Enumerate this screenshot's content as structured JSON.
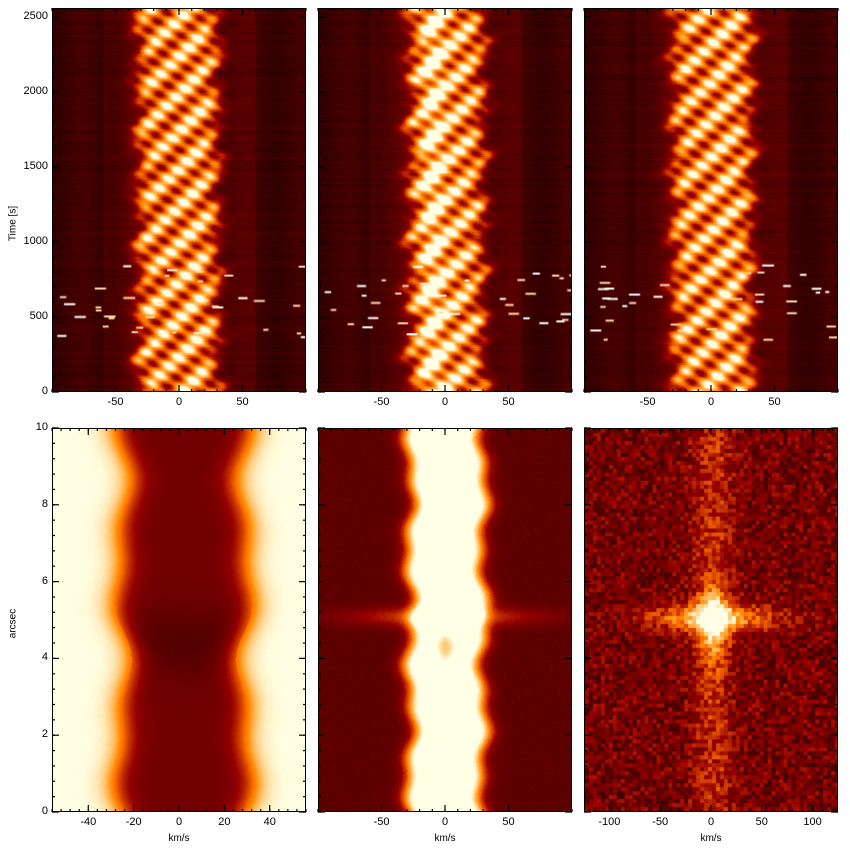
{
  "chart_data": [
    {
      "type": "heatmap",
      "panel": "top-left",
      "x_ticks": [
        "-50",
        "0",
        "50"
      ],
      "x_tick_values": [
        -50,
        0,
        50
      ],
      "xlim": [
        -100,
        100
      ],
      "ylabel": "Time [s]",
      "y_ticks": [
        "0",
        "500",
        "1000",
        "1500",
        "2000",
        "2500"
      ],
      "y_tick_values": [
        0,
        500,
        1000,
        1500,
        2000,
        2500
      ],
      "ylim": [
        0,
        2560
      ],
      "bright_band_kms": [
        -32,
        30
      ],
      "colormap": "red-temperature"
    },
    {
      "type": "heatmap",
      "panel": "top-middle",
      "x_ticks": [
        "-50",
        "0",
        "50"
      ],
      "x_tick_values": [
        -50,
        0,
        50
      ],
      "xlim": [
        -100,
        100
      ],
      "ylim": [
        0,
        2560
      ],
      "bright_band_kms": [
        -28,
        30
      ],
      "colormap": "red-temperature"
    },
    {
      "type": "heatmap",
      "panel": "top-right",
      "x_ticks": [
        "-50",
        "0",
        "50"
      ],
      "x_tick_values": [
        -50,
        0,
        50
      ],
      "xlim": [
        -100,
        100
      ],
      "ylim": [
        0,
        2560
      ],
      "bright_band_kms": [
        -30,
        32
      ],
      "colormap": "red-temperature"
    },
    {
      "type": "heatmap",
      "panel": "bottom-left",
      "xlabel": "km/s",
      "x_ticks": [
        "-40",
        "-20",
        "0",
        "20",
        "40"
      ],
      "x_tick_values": [
        -40,
        -20,
        0,
        20,
        40
      ],
      "xlim": [
        -56,
        56
      ],
      "ylabel": "arcsec",
      "y_ticks": [
        "0",
        "2",
        "4",
        "6",
        "8",
        "10"
      ],
      "y_tick_values": [
        0,
        2,
        4,
        6,
        8,
        10
      ],
      "ylim": [
        0,
        10
      ],
      "colormap": "red-temperature"
    },
    {
      "type": "heatmap",
      "panel": "bottom-middle",
      "xlabel": "km/s",
      "x_ticks": [
        "-50",
        "0",
        "50"
      ],
      "x_tick_values": [
        -50,
        0,
        50
      ],
      "xlim": [
        -100,
        100
      ],
      "ylim": [
        0,
        10
      ],
      "bright_band_kms": [
        -28,
        30
      ],
      "colormap": "red-temperature"
    },
    {
      "type": "heatmap",
      "panel": "bottom-right",
      "xlabel": "km/s",
      "x_ticks": [
        "-100",
        "-50",
        "0",
        "50",
        "100"
      ],
      "x_tick_values": [
        -100,
        -50,
        0,
        50,
        100
      ],
      "xlim": [
        -125,
        125
      ],
      "ylim": [
        0,
        10
      ],
      "colormap": "red-temperature"
    }
  ]
}
